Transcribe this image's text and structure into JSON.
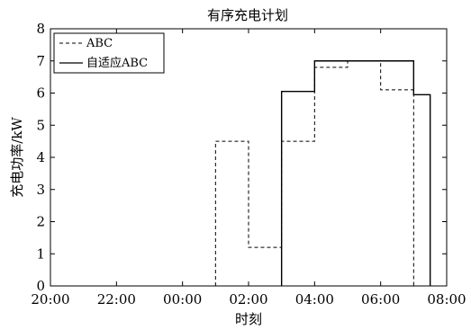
{
  "chart_data": {
    "type": "line",
    "title": "有序充电计划",
    "xlabel": "时刻",
    "ylabel": "充电功率/kW",
    "xlim": [
      -4,
      8
    ],
    "ylim": [
      0,
      8
    ],
    "x_tick_labels": [
      "20:00",
      "22:00",
      "00:00",
      "02:00",
      "04:00",
      "06:00",
      "08:00"
    ],
    "x_tick_values": [
      -4,
      -2,
      0,
      2,
      4,
      6,
      8
    ],
    "y_ticks": [
      0,
      1,
      2,
      3,
      4,
      5,
      6,
      7,
      8
    ],
    "grid": false,
    "legend_position": "top-left",
    "step": true,
    "series": [
      {
        "name": "ABC",
        "style": "dashed",
        "points": [
          [
            1.0,
            0
          ],
          [
            1.0,
            4.5
          ],
          [
            2.0,
            4.5
          ],
          [
            2.0,
            1.2
          ],
          [
            3.0,
            1.2
          ],
          [
            3.0,
            4.5
          ],
          [
            4.0,
            4.5
          ],
          [
            4.0,
            6.8
          ],
          [
            5.0,
            6.8
          ],
          [
            5.0,
            7.0
          ],
          [
            6.0,
            7.0
          ],
          [
            6.0,
            6.1
          ],
          [
            7.0,
            6.1
          ],
          [
            7.0,
            0
          ]
        ]
      },
      {
        "name": "自适应ABC",
        "style": "solid",
        "points": [
          [
            3.0,
            0
          ],
          [
            3.0,
            6.05
          ],
          [
            4.0,
            6.05
          ],
          [
            4.0,
            7.0
          ],
          [
            7.0,
            7.0
          ],
          [
            7.0,
            5.95
          ],
          [
            7.5,
            5.95
          ],
          [
            7.5,
            0
          ]
        ]
      }
    ]
  }
}
